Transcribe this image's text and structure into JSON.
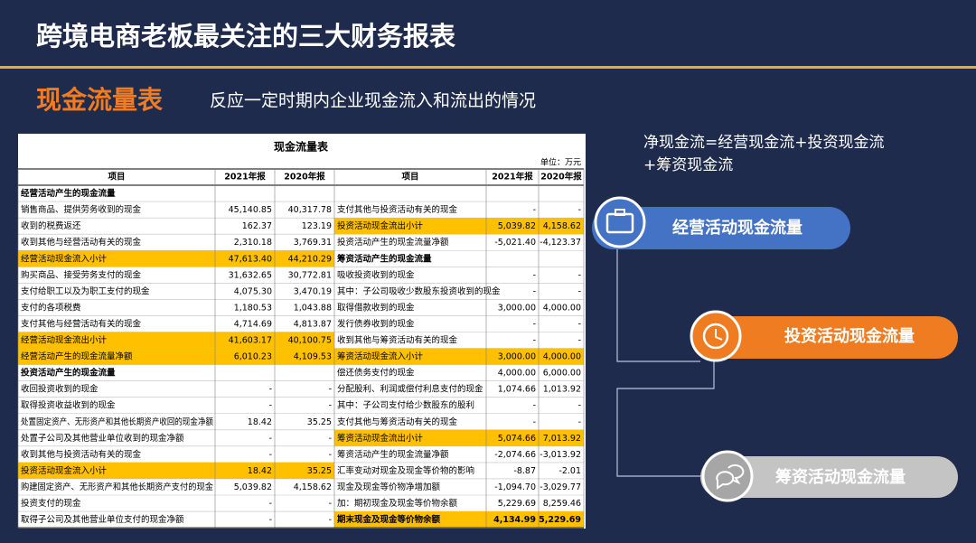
{
  "header": {
    "title": "跨境电商老板最关注的三大财务报表",
    "subtitle": "现金流量表",
    "description": "反应一定时期内企业现金流入和流出的情况"
  },
  "table": {
    "title": "现金流量表",
    "unit": "单位：万元",
    "highlight_color": "#ffc000",
    "columns": [
      "项目",
      "2021年报",
      "2020年报",
      "项目",
      "2021年报",
      "2020年报"
    ],
    "rows": [
      {
        "cells": [
          "经营活动产生的现金流量",
          null,
          null,
          null,
          null,
          null
        ],
        "section": "left"
      },
      {
        "cells": [
          "销售商品、提供劳务收到的现金",
          "45,140.85",
          "40,317.78",
          "支付其他与投资活动有关的现金",
          "-",
          "-"
        ]
      },
      {
        "cells": [
          "收到的税费返还",
          "162.37",
          "123.19",
          "投资活动现金流出小计",
          "5,039.82",
          "4,158.62"
        ],
        "highlight": "right"
      },
      {
        "cells": [
          "收到其他与经营活动有关的现金",
          "2,310.18",
          "3,769.31",
          "投资活动产生的现金流量净额",
          "-5,021.40",
          "-4,123.37"
        ]
      },
      {
        "cells": [
          "经营活动现金流入小计",
          "47,613.40",
          "44,210.29",
          "筹资活动产生的现金流量",
          null,
          null
        ],
        "highlight": "left",
        "section": "right"
      },
      {
        "cells": [
          "购买商品、接受劳务支付的现金",
          "31,632.65",
          "30,772.81",
          "吸收投资收到的现金",
          "-",
          "-"
        ]
      },
      {
        "cells": [
          "支付给职工以及为职工支付的现金",
          "4,075.30",
          "3,470.19",
          "其中：子公司吸收少数股东投资收到的现金",
          "-",
          "-"
        ]
      },
      {
        "cells": [
          "支付的各项税费",
          "1,180.53",
          "1,043.88",
          "取得借款收到的现金",
          "3,000.00",
          "4,000.00"
        ]
      },
      {
        "cells": [
          "支付其他与经营活动有关的现金",
          "4,714.69",
          "4,813.87",
          "发行债券收到的现金",
          "-",
          "-"
        ]
      },
      {
        "cells": [
          "经营活动现金流出小计",
          "41,603.17",
          "40,100.75",
          "收到其他与筹资活动有关的现金",
          "-",
          "-"
        ],
        "highlight": "left"
      },
      {
        "cells": [
          "经营活动产生的现金流量净额",
          "6,010.23",
          "4,109.53",
          "筹资活动现金流入小计",
          "3,000.00",
          "4,000.00"
        ],
        "highlight": "both"
      },
      {
        "cells": [
          "投资活动产生的现金流量",
          null,
          null,
          "偿还债务支付的现金",
          "4,000.00",
          "6,000.00"
        ],
        "section": "left"
      },
      {
        "cells": [
          "收回投资收到的现金",
          "-",
          "-",
          "分配股利、利润或偿付利息支付的现金",
          "1,074.66",
          "1,013.92"
        ]
      },
      {
        "cells": [
          "取得投资收益收到的现金",
          "-",
          "-",
          "其中：子公司支付给少数股东的股利",
          "-",
          "-"
        ]
      },
      {
        "cells": [
          "处置固定资产、无形资产和其他长期资产收回的现金净额",
          "18.42",
          "35.25",
          "支付其他与筹资活动有关的现金",
          "-",
          "-"
        ]
      },
      {
        "cells": [
          "处置子公司及其他营业单位收到的现金净额",
          "-",
          "-",
          "筹资活动现金流出小计",
          "5,074.66",
          "7,013.92"
        ],
        "highlight": "right"
      },
      {
        "cells": [
          "收到其他与投资活动有关的现金",
          "-",
          "-",
          "筹资活动产生的现金流量净额",
          "-2,074.66",
          "-3,013.92"
        ]
      },
      {
        "cells": [
          "投资活动现金流入小计",
          "18.42",
          "35.25",
          "汇率变动对现金及现金等价物的影响",
          "-8.87",
          "-2.01"
        ],
        "highlight": "left"
      },
      {
        "cells": [
          "购建固定资产、无形资产和其他长期资产支付的现金",
          "5,039.82",
          "4,158.62",
          "现金及现金等价物净增加额",
          "-1,094.70",
          "-3,029.77"
        ]
      },
      {
        "cells": [
          "投资支付的现金",
          "-",
          "-",
          "加：期初现金及现金等价物余额",
          "5,229.69",
          "8,259.46"
        ]
      },
      {
        "cells": [
          "取得子公司及其他营业单位支付的现金净额",
          "-",
          "-",
          "期末现金及现金等价物余额",
          "4,134.99",
          "5,229.69"
        ],
        "highlight": "right",
        "section": "right"
      }
    ]
  },
  "formula": {
    "line1": "净现金流=经营现金流+投资现金流",
    "line2": "+筹资现金流"
  },
  "buttons": [
    "经营活动现金流量",
    "投资活动现金流量",
    "筹资活动现金流量"
  ]
}
